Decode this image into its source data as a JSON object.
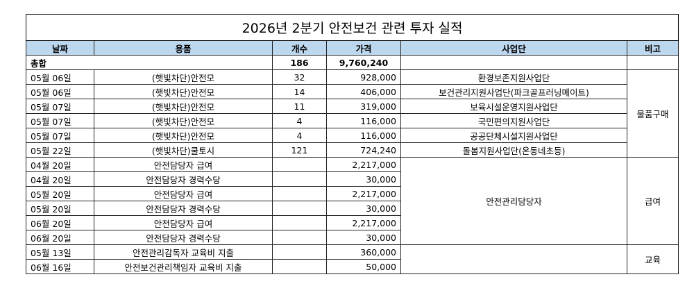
{
  "table": {
    "title": "2026년 2분기 안전보건 관련 투자 실적",
    "header": [
      "날짜",
      "용품",
      "개수",
      "가격",
      "사업단",
      "비고"
    ],
    "total": {
      "label": "총합",
      "count": "186",
      "price": "9,760,240"
    },
    "groups": [
      {
        "note": "물품구매",
        "rows": [
          {
            "date": "05월 06일",
            "item": "(햇빛차단)안전모",
            "count": "32",
            "price": "928,000",
            "org": "환경보존지원사업단"
          },
          {
            "date": "05월 06일",
            "item": "(햇빛차단)안전모",
            "count": "14",
            "price": "406,000",
            "org": "보건관리지원사업단(파크골프러닝메이트)"
          },
          {
            "date": "05월 07일",
            "item": "(햇빛차단)안전모",
            "count": "11",
            "price": "319,000",
            "org": "보육시설운영지원사업단"
          },
          {
            "date": "05월 07일",
            "item": "(햇빛차단)안전모",
            "count": "4",
            "price": "116,000",
            "org": "국민편의지원사업단"
          },
          {
            "date": "05월 07일",
            "item": "(햇빛차단)안전모",
            "count": "4",
            "price": "116,000",
            "org": "공공단체시설지원사업단"
          },
          {
            "date": "05월 22일",
            "item": "(햇빛차단)쿨토시",
            "count": "121",
            "price": "724,240",
            "org": "돌봄지원사업단(온동네초등)"
          }
        ]
      },
      {
        "note": "급여",
        "org": "안전관리담당자",
        "rows": [
          {
            "date": "04월 20일",
            "item": "안전담당자 급여",
            "price": "2,217,000"
          },
          {
            "date": "04월 20일",
            "item": "안전담당자 경력수당",
            "price": "30,000"
          },
          {
            "date": "05월 20일",
            "item": "안전담당자 급여",
            "price": "2,217,000"
          },
          {
            "date": "05월 20일",
            "item": "안전담당자 경력수당",
            "price": "30,000"
          },
          {
            "date": "06월 20일",
            "item": "안전담당자 급여",
            "price": "2,217,000"
          },
          {
            "date": "06월 20일",
            "item": "안전담당자 경력수당",
            "price": "30,000"
          }
        ]
      },
      {
        "note": "교육",
        "rows": [
          {
            "date": "05월 13일",
            "item": "안전관리감독자 교육비 지출",
            "price": "360,000"
          },
          {
            "date": "06월 16일",
            "item": "안전보건관리책임자 교육비 지출",
            "price": "50,000"
          }
        ]
      }
    ]
  }
}
